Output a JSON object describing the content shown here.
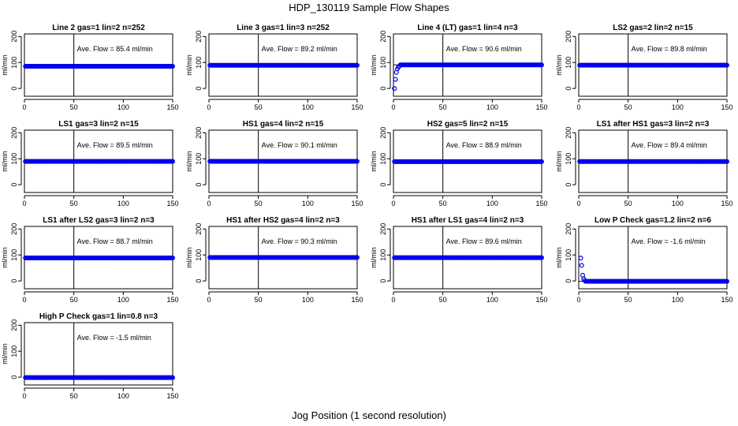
{
  "title": "HDP_130119  Sample Flow Shapes",
  "xlabel": "Jog Position (1 second resolution)",
  "colors": {
    "points": "#0000ee",
    "axes": "#000000"
  },
  "chart_data": [
    {
      "type": "scatter",
      "title": "Line 2 gas=1 lin=2 n=252",
      "ylabel": "ml/min",
      "annotation": "Ave. Flow =  85.4  ml/min",
      "xlim": [
        0,
        150
      ],
      "ylim": [
        -30,
        210
      ],
      "xticks": [
        0,
        50,
        100,
        150
      ],
      "yticks": [
        0,
        100,
        200
      ],
      "vline": 50,
      "hline": 85.4,
      "shape": "flat",
      "level": 85.4
    },
    {
      "type": "scatter",
      "title": "Line 3 gas=1 lin=3 n=252",
      "ylabel": "ml/min",
      "annotation": "Ave. Flow =  89.2  ml/min",
      "xlim": [
        0,
        150
      ],
      "ylim": [
        -30,
        210
      ],
      "xticks": [
        0,
        50,
        100,
        150
      ],
      "yticks": [
        0,
        100,
        200
      ],
      "vline": 50,
      "hline": 89.2,
      "shape": "flat",
      "level": 89.2
    },
    {
      "type": "scatter",
      "title": "Line 4 (LT) gas=1 lin=4 n=3",
      "ylabel": "ml/min",
      "annotation": "Ave. Flow =  90.6  ml/min",
      "xlim": [
        0,
        150
      ],
      "ylim": [
        -30,
        210
      ],
      "xticks": [
        0,
        50,
        100,
        150
      ],
      "yticks": [
        0,
        100,
        200
      ],
      "vline": 50,
      "hline": 90.6,
      "shape": "rise",
      "level": 90.6,
      "initial_points": [
        [
          1,
          0
        ],
        [
          2,
          35
        ],
        [
          3,
          62
        ],
        [
          4,
          75
        ],
        [
          5,
          82
        ],
        [
          6,
          86
        ]
      ]
    },
    {
      "type": "scatter",
      "title": "LS2 gas=2 lin=2 n=15",
      "ylabel": "ml/min",
      "annotation": "Ave. Flow =  89.8  ml/min",
      "xlim": [
        0,
        150
      ],
      "ylim": [
        -30,
        210
      ],
      "xticks": [
        0,
        50,
        100,
        150
      ],
      "yticks": [
        0,
        100,
        200
      ],
      "vline": 50,
      "hline": 89.8,
      "shape": "flat",
      "level": 89.8
    },
    {
      "type": "scatter",
      "title": "LS1 gas=3 lin=2 n=15",
      "ylabel": "ml/min",
      "annotation": "Ave. Flow =  89.5  ml/min",
      "xlim": [
        0,
        150
      ],
      "ylim": [
        -30,
        210
      ],
      "xticks": [
        0,
        50,
        100,
        150
      ],
      "yticks": [
        0,
        100,
        200
      ],
      "vline": 50,
      "hline": 89.5,
      "shape": "flat",
      "level": 89.5
    },
    {
      "type": "scatter",
      "title": "HS1 gas=4 lin=2 n=15",
      "ylabel": "ml/min",
      "annotation": "Ave. Flow =  90.1  ml/min",
      "xlim": [
        0,
        150
      ],
      "ylim": [
        -30,
        210
      ],
      "xticks": [
        0,
        50,
        100,
        150
      ],
      "yticks": [
        0,
        100,
        200
      ],
      "vline": 50,
      "hline": 90.1,
      "shape": "flat",
      "level": 90.1
    },
    {
      "type": "scatter",
      "title": "HS2 gas=5 lin=2 n=15",
      "ylabel": "ml/min",
      "annotation": "Ave. Flow =  88.9  ml/min",
      "xlim": [
        0,
        150
      ],
      "ylim": [
        -30,
        210
      ],
      "xticks": [
        0,
        50,
        100,
        150
      ],
      "yticks": [
        0,
        100,
        200
      ],
      "vline": 50,
      "hline": 88.9,
      "shape": "flat",
      "level": 88.9
    },
    {
      "type": "scatter",
      "title": "LS1 after HS1 gas=3 lin=2 n=3",
      "ylabel": "ml/min",
      "annotation": "Ave. Flow =  89.4  ml/min",
      "xlim": [
        0,
        150
      ],
      "ylim": [
        -30,
        210
      ],
      "xticks": [
        0,
        50,
        100,
        150
      ],
      "yticks": [
        0,
        100,
        200
      ],
      "vline": 50,
      "hline": 89.4,
      "shape": "flat",
      "level": 89.4
    },
    {
      "type": "scatter",
      "title": "LS1 after LS2 gas=3 lin=2 n=3",
      "ylabel": "ml/min",
      "annotation": "Ave. Flow =  88.7  ml/min",
      "xlim": [
        0,
        150
      ],
      "ylim": [
        -30,
        210
      ],
      "xticks": [
        0,
        50,
        100,
        150
      ],
      "yticks": [
        0,
        100,
        200
      ],
      "vline": 50,
      "hline": 88.7,
      "shape": "flat",
      "level": 88.7
    },
    {
      "type": "scatter",
      "title": "HS1 after HS2 gas=4 lin=2 n=3",
      "ylabel": "ml/min",
      "annotation": "Ave. Flow =  90.3  ml/min",
      "xlim": [
        0,
        150
      ],
      "ylim": [
        -30,
        210
      ],
      "xticks": [
        0,
        50,
        100,
        150
      ],
      "yticks": [
        0,
        100,
        200
      ],
      "vline": 50,
      "hline": 90.3,
      "shape": "flat",
      "level": 90.3
    },
    {
      "type": "scatter",
      "title": "HS1 after LS1 gas=4 lin=2 n=3",
      "ylabel": "ml/min",
      "annotation": "Ave. Flow =  89.6  ml/min",
      "xlim": [
        0,
        150
      ],
      "ylim": [
        -30,
        210
      ],
      "xticks": [
        0,
        50,
        100,
        150
      ],
      "yticks": [
        0,
        100,
        200
      ],
      "vline": 50,
      "hline": 89.6,
      "shape": "flat",
      "level": 89.6
    },
    {
      "type": "scatter",
      "title": "Low P Check gas=1.2 lin=2 n=6",
      "ylabel": "ml/min",
      "annotation": "Ave. Flow =  -1.6  ml/min",
      "xlim": [
        0,
        150
      ],
      "ylim": [
        -30,
        210
      ],
      "xticks": [
        0,
        50,
        100,
        150
      ],
      "yticks": [
        0,
        100,
        200
      ],
      "vline": 50,
      "hline": -1.6,
      "shape": "drop",
      "level": -1.6,
      "initial_points": [
        [
          2,
          88
        ],
        [
          3,
          60
        ],
        [
          4,
          22
        ],
        [
          5,
          8
        ],
        [
          6,
          2
        ]
      ]
    },
    {
      "type": "scatter",
      "title": "High P Check gas=1 lin=0.8 n=3",
      "ylabel": "ml/min",
      "annotation": "Ave. Flow =  -1.5  ml/min",
      "xlim": [
        0,
        150
      ],
      "ylim": [
        -30,
        210
      ],
      "xticks": [
        0,
        50,
        100,
        150
      ],
      "yticks": [
        0,
        100,
        200
      ],
      "vline": 50,
      "hline": -1.5,
      "shape": "flat",
      "level": -1.5
    }
  ]
}
